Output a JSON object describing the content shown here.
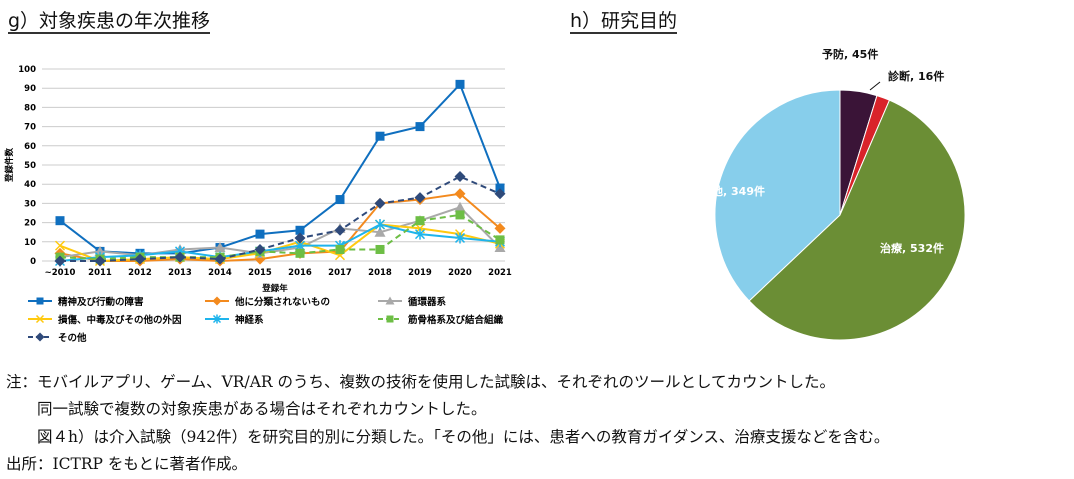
{
  "left_title": "g）対象疾患の年次推移",
  "right_title": "h）研究目的",
  "chart_data": [
    {
      "type": "line",
      "ylabel": "登録件数",
      "xlabel": "登録年",
      "ylim": [
        0,
        100
      ],
      "yticks": [
        0,
        10,
        20,
        30,
        40,
        50,
        60,
        70,
        80,
        90,
        100
      ],
      "grid": true,
      "legend": "bottom",
      "categories": [
        "~2010",
        "2011",
        "2012",
        "2013",
        "2014",
        "2015",
        "2016",
        "2017",
        "2018",
        "2019",
        "2020",
        "2021"
      ],
      "series": [
        {
          "name": "精神及び行動の障害",
          "color": "#0F6FBF",
          "marker": "square",
          "dash": false,
          "values": [
            21,
            5,
            4,
            4,
            7,
            14,
            16,
            32,
            65,
            70,
            92,
            38
          ]
        },
        {
          "name": "他に分類されないもの",
          "color": "#F38A1E",
          "marker": "diamond",
          "dash": false,
          "values": [
            4,
            0,
            0,
            1,
            0,
            1,
            4,
            5,
            30,
            32,
            35,
            17
          ]
        },
        {
          "name": "循環器系",
          "color": "#A9A9A9",
          "marker": "triangle",
          "dash": false,
          "values": [
            2,
            5,
            3,
            6,
            7,
            4,
            7,
            17,
            15,
            21,
            28,
            7
          ]
        },
        {
          "name": "損傷、中毒及びその他の外因",
          "color": "#FFC90E",
          "marker": "x",
          "dash": false,
          "values": [
            8,
            0,
            1,
            2,
            1,
            4,
            10,
            3,
            19,
            17,
            14,
            9
          ]
        },
        {
          "name": "神経系",
          "color": "#1EB4EC",
          "marker": "star",
          "dash": false,
          "values": [
            0,
            2,
            3,
            5,
            2,
            5,
            8,
            8,
            19,
            14,
            12,
            10
          ]
        },
        {
          "name": "筋骨格系及び結合組織",
          "color": "#6DBE45",
          "marker": "square",
          "dash": true,
          "values": [
            2,
            1,
            2,
            2,
            2,
            5,
            4,
            6,
            6,
            21,
            24,
            11
          ]
        },
        {
          "name": "その他",
          "color": "#2F4A7A",
          "marker": "diamond",
          "dash": true,
          "values": [
            0,
            0,
            1,
            2,
            1,
            6,
            12,
            16,
            30,
            33,
            44,
            35
          ]
        }
      ]
    },
    {
      "type": "pie",
      "slices": [
        {
          "label": "予防, 45件",
          "value": 45,
          "color": "#3A1437"
        },
        {
          "label": "診断, 16件",
          "value": 16,
          "color": "#D9232A"
        },
        {
          "label": "治療, 532件",
          "value": 532,
          "color": "#6B8E35"
        },
        {
          "label": "その他, 349件",
          "value": 349,
          "color": "#87CEEB"
        }
      ]
    }
  ],
  "notes": [
    "注：モバイルアプリ、ゲーム、VR/AR のうち、複数の技術を使用した試験は、それぞれのツールとしてカウントした。",
    "　　同一試験で複数の対象疾患がある場合はそれぞれカウントした。",
    "　　図４h）は介入試験（942件）を研究目的別に分類した。「その他」には、患者への教育ガイダンス、治療支援などを含む。",
    "出所：ICTRP をもとに著者作成。"
  ]
}
